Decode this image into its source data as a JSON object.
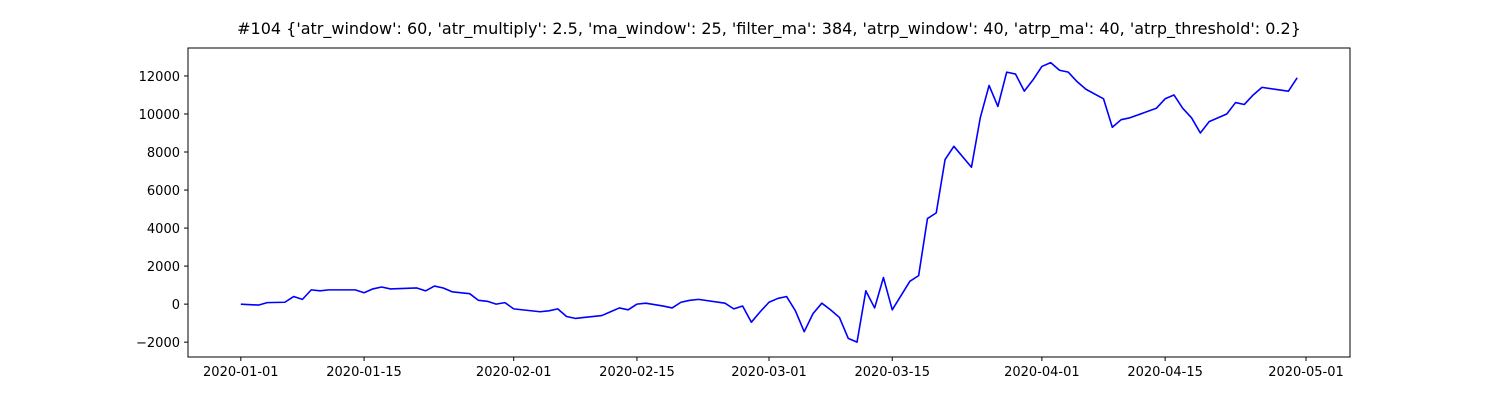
{
  "chart_data": {
    "type": "line",
    "title": "#104 {'atr_window': 60, 'atr_multiply': 2.5, 'ma_window': 25, 'filter_ma': 384, 'atrp_window': 40, 'atrp_ma': 40, 'atrp_threshold': 0.2}",
    "color": "#0000ff",
    "x": [
      "2020-01-01",
      "2020-01-03",
      "2020-01-04",
      "2020-01-06",
      "2020-01-07",
      "2020-01-08",
      "2020-01-09",
      "2020-01-10",
      "2020-01-11",
      "2020-01-14",
      "2020-01-15",
      "2020-01-16",
      "2020-01-17",
      "2020-01-18",
      "2020-01-21",
      "2020-01-22",
      "2020-01-23",
      "2020-01-24",
      "2020-01-25",
      "2020-01-27",
      "2020-01-28",
      "2020-01-29",
      "2020-01-30",
      "2020-01-31",
      "2020-02-01",
      "2020-02-04",
      "2020-02-05",
      "2020-02-06",
      "2020-02-07",
      "2020-02-08",
      "2020-02-09",
      "2020-02-11",
      "2020-02-12",
      "2020-02-13",
      "2020-02-14",
      "2020-02-15",
      "2020-02-16",
      "2020-02-18",
      "2020-02-19",
      "2020-02-20",
      "2020-02-21",
      "2020-02-22",
      "2020-02-25",
      "2020-02-26",
      "2020-02-27",
      "2020-02-28",
      "2020-02-29",
      "2020-03-01",
      "2020-03-02",
      "2020-03-03",
      "2020-03-04",
      "2020-03-05",
      "2020-03-06",
      "2020-03-07",
      "2020-03-08",
      "2020-03-09",
      "2020-03-10",
      "2020-03-11",
      "2020-03-12",
      "2020-03-13",
      "2020-03-14",
      "2020-03-15",
      "2020-03-17",
      "2020-03-18",
      "2020-03-19",
      "2020-03-20",
      "2020-03-21",
      "2020-03-22",
      "2020-03-24",
      "2020-03-25",
      "2020-03-26",
      "2020-03-27",
      "2020-03-28",
      "2020-03-29",
      "2020-03-30",
      "2020-03-31",
      "2020-04-01",
      "2020-04-02",
      "2020-04-03",
      "2020-04-04",
      "2020-04-05",
      "2020-04-06",
      "2020-04-08",
      "2020-04-09",
      "2020-04-10",
      "2020-04-11",
      "2020-04-14",
      "2020-04-15",
      "2020-04-16",
      "2020-04-17",
      "2020-04-18",
      "2020-04-19",
      "2020-04-20",
      "2020-04-22",
      "2020-04-23",
      "2020-04-24",
      "2020-04-25",
      "2020-04-26",
      "2020-04-29",
      "2020-04-30"
    ],
    "values": [
      0,
      -50,
      80,
      100,
      400,
      250,
      750,
      700,
      750,
      750,
      600,
      800,
      900,
      800,
      850,
      700,
      950,
      850,
      650,
      550,
      200,
      150,
      0,
      80,
      -250,
      -400,
      -350,
      -250,
      -650,
      -750,
      -700,
      -600,
      -400,
      -200,
      -300,
      0,
      50,
      -100,
      -200,
      100,
      200,
      250,
      50,
      -250,
      -100,
      -950,
      -400,
      100,
      300,
      400,
      -350,
      -1450,
      -500,
      50,
      -300,
      -700,
      -1800,
      -2000,
      700,
      -200,
      1400,
      -300,
      1200,
      1500,
      4500,
      4800,
      7600,
      8300,
      7200,
      9800,
      11500,
      10400,
      12200,
      12100,
      11200,
      11800,
      12500,
      12700,
      12300,
      12200,
      11700,
      11300,
      10800,
      9300,
      9700,
      9800,
      10300,
      10800,
      11000,
      10300,
      9800,
      9000,
      9600,
      10000,
      10600,
      10500,
      11000,
      11400,
      11200,
      11900
    ],
    "xlim": [
      "2019-12-26",
      "2020-05-06"
    ],
    "xticks": [
      "2020-01-01",
      "2020-01-15",
      "2020-02-01",
      "2020-02-15",
      "2020-03-01",
      "2020-03-15",
      "2020-04-01",
      "2020-04-15",
      "2020-05-01"
    ],
    "ylim": [
      -2780,
      13470
    ],
    "yticks": [
      {
        "value": -2000,
        "label": "−2000"
      },
      0,
      2000,
      4000,
      6000,
      8000,
      10000,
      12000
    ],
    "grid": false
  }
}
